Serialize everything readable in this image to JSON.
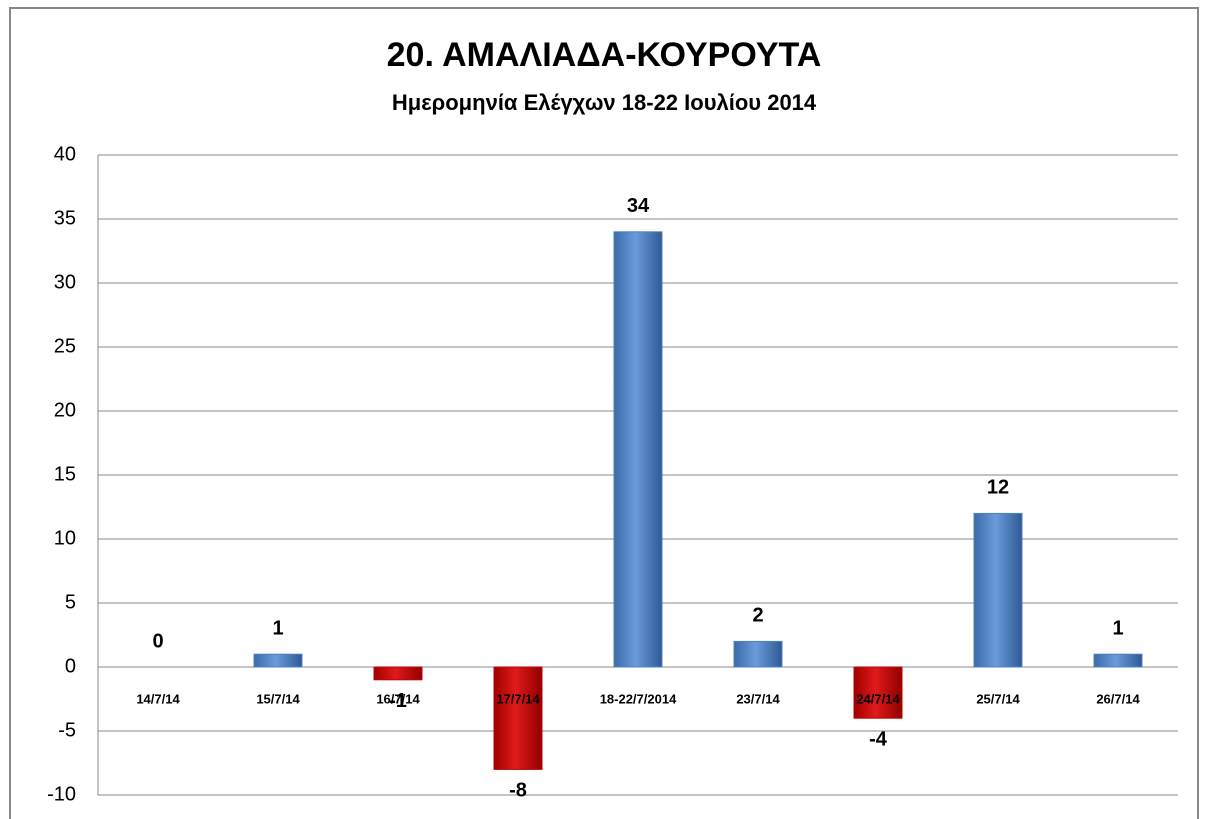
{
  "chart_data": {
    "type": "bar",
    "title": "20. ΑΜΑΛΙΑΔΑ-ΚΟΥΡΟΥΤΑ",
    "subtitle": "Ημερομηνία Ελέγχων 18-22 Ιουλίου 2014",
    "categories": [
      "14/7/14",
      "15/7/14",
      "16/7/14",
      "17/7/14",
      "18-22/7/2014",
      "23/7/14",
      "24/7/14",
      "25/7/14",
      "26/7/14"
    ],
    "values": [
      0,
      1,
      -1,
      -8,
      34,
      2,
      -4,
      12,
      1
    ],
    "color": "#4f81bd",
    "negative_color": "#c00000",
    "ylim": [
      -10,
      40
    ],
    "yticks": [
      -10,
      -5,
      0,
      5,
      10,
      15,
      20,
      25,
      30,
      35,
      40
    ],
    "grid": true
  }
}
